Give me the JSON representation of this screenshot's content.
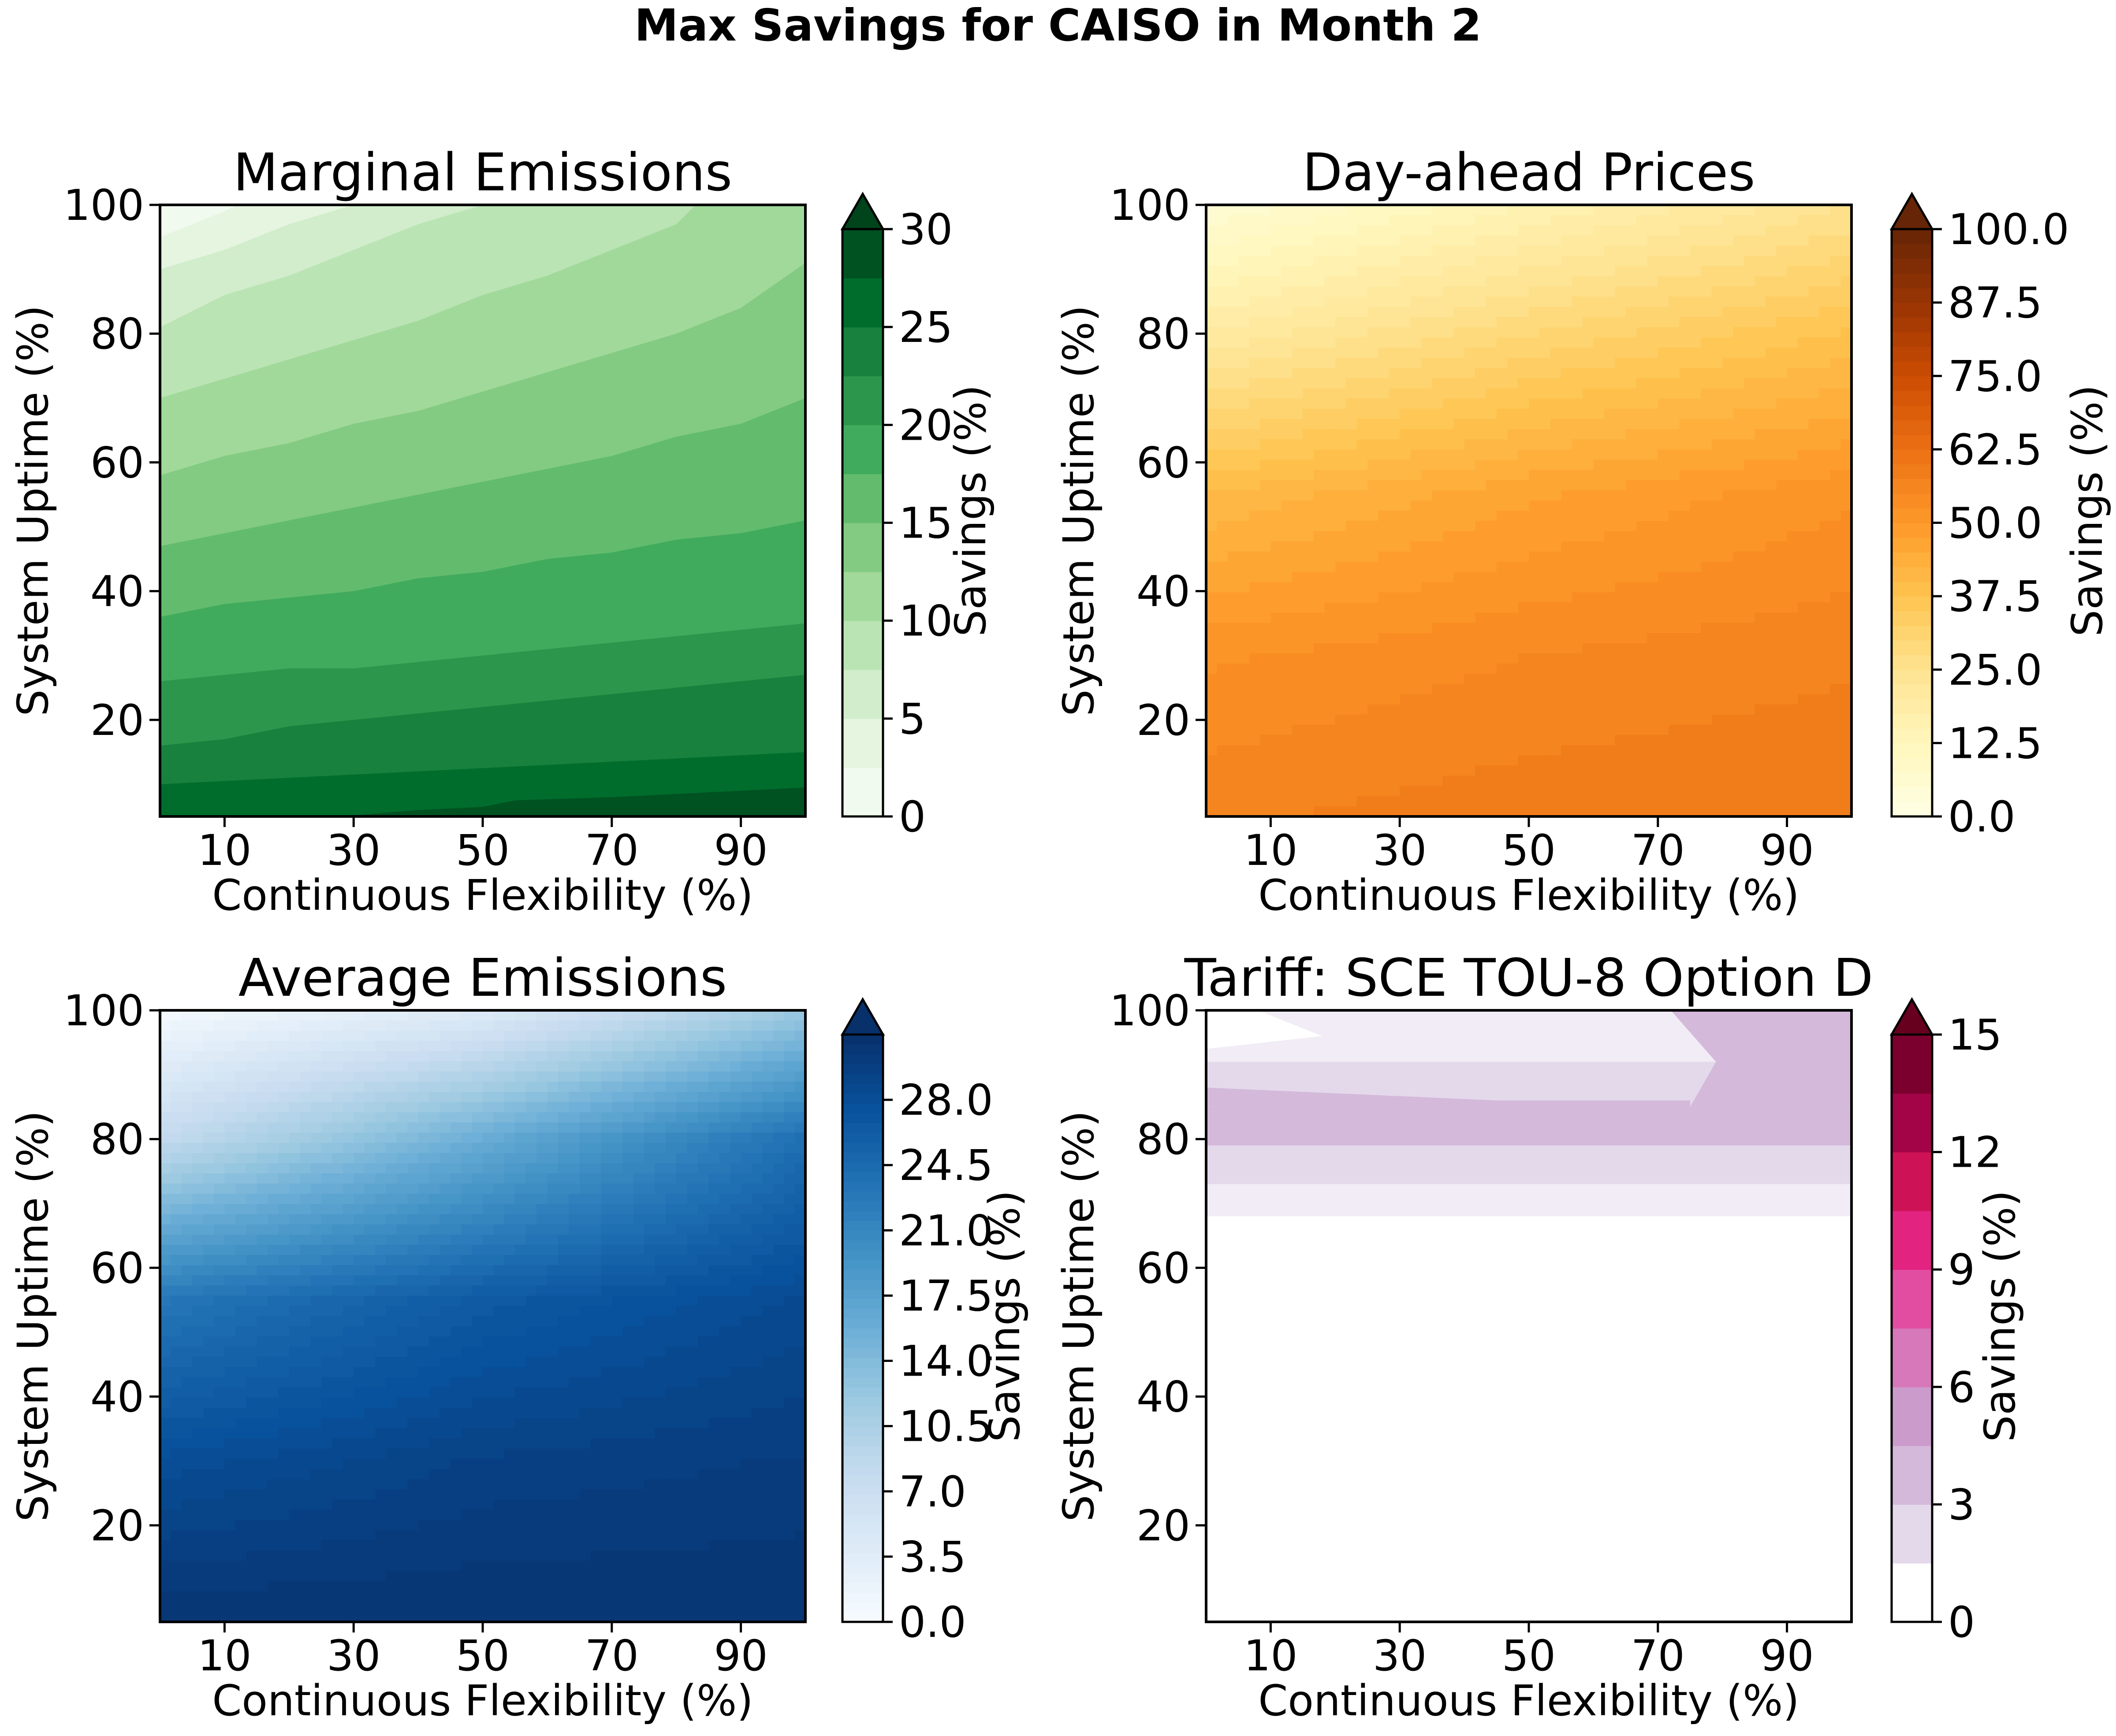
{
  "suptitle": "Max Savings for CAISO in Month 2",
  "chart_data": [
    {
      "type": "heatmap",
      "title": "Marginal Emissions",
      "xlabel": "Continuous Flexibility (%)",
      "ylabel": "System Uptime (%)",
      "xticks": [
        "10",
        "30",
        "50",
        "70",
        "90"
      ],
      "yticks": [
        "20",
        "40",
        "60",
        "80",
        "100"
      ],
      "xlim": [
        0,
        100
      ],
      "ylim": [
        5,
        100
      ],
      "colormap": "Greens",
      "colorbar": {
        "label": "Savings (%)",
        "ticks": [
          "0",
          "5",
          "10",
          "15",
          "20",
          "25",
          "30"
        ],
        "range": [
          0,
          30
        ],
        "levels": 12,
        "extend": "max"
      },
      "boundaries": [
        {
          "level": 2.5,
          "y_at_x": [
            [
              0,
              95
            ],
            [
              10,
              99
            ],
            [
              20,
              104
            ]
          ]
        },
        {
          "level": 5,
          "y_at_x": [
            [
              0,
              90
            ],
            [
              10,
              93
            ],
            [
              20,
              97
            ],
            [
              30,
              100
            ]
          ]
        },
        {
          "level": 7.5,
          "y_at_x": [
            [
              0,
              81
            ],
            [
              10,
              86
            ],
            [
              20,
              89
            ],
            [
              30,
              93
            ],
            [
              40,
              97
            ],
            [
              50,
              100
            ]
          ]
        },
        {
          "level": 10,
          "y_at_x": [
            [
              0,
              70
            ],
            [
              10,
              73
            ],
            [
              20,
              76
            ],
            [
              30,
              79
            ],
            [
              40,
              82
            ],
            [
              50,
              86
            ],
            [
              60,
              89
            ],
            [
              70,
              93
            ],
            [
              80,
              97
            ],
            [
              83,
              100
            ]
          ]
        },
        {
          "level": 12.5,
          "y_at_x": [
            [
              0,
              58
            ],
            [
              10,
              61
            ],
            [
              20,
              63
            ],
            [
              30,
              66
            ],
            [
              40,
              68
            ],
            [
              50,
              71
            ],
            [
              60,
              74
            ],
            [
              70,
              77
            ],
            [
              80,
              80
            ],
            [
              90,
              84
            ],
            [
              100,
              91
            ]
          ]
        },
        {
          "level": 15,
          "y_at_x": [
            [
              0,
              47
            ],
            [
              10,
              49
            ],
            [
              20,
              51
            ],
            [
              30,
              53
            ],
            [
              40,
              55
            ],
            [
              50,
              57
            ],
            [
              60,
              59
            ],
            [
              70,
              61
            ],
            [
              80,
              64
            ],
            [
              90,
              66
            ],
            [
              100,
              70
            ]
          ]
        },
        {
          "level": 17.5,
          "y_at_x": [
            [
              0,
              36
            ],
            [
              10,
              38
            ],
            [
              20,
              39
            ],
            [
              30,
              40
            ],
            [
              40,
              42
            ],
            [
              50,
              43
            ],
            [
              60,
              45
            ],
            [
              70,
              46
            ],
            [
              80,
              48
            ],
            [
              90,
              49
            ],
            [
              100,
              51
            ]
          ]
        },
        {
          "level": 20,
          "y_at_x": [
            [
              0,
              26
            ],
            [
              10,
              27
            ],
            [
              20,
              28
            ],
            [
              30,
              28
            ],
            [
              40,
              29
            ],
            [
              50,
              30
            ],
            [
              60,
              31
            ],
            [
              70,
              32
            ],
            [
              80,
              33
            ],
            [
              90,
              34
            ],
            [
              100,
              35
            ]
          ]
        },
        {
          "level": 22.5,
          "y_at_x": [
            [
              0,
              16
            ],
            [
              10,
              17
            ],
            [
              20,
              19
            ],
            [
              30,
              20
            ],
            [
              40,
              21
            ],
            [
              50,
              22
            ],
            [
              60,
              23
            ],
            [
              70,
              24
            ],
            [
              80,
              25
            ],
            [
              90,
              26
            ],
            [
              100,
              27
            ]
          ]
        },
        {
          "level": 25,
          "y_at_x": [
            [
              0,
              10
            ],
            [
              10,
              10.5
            ],
            [
              20,
              11
            ],
            [
              30,
              11.5
            ],
            [
              40,
              12
            ],
            [
              50,
              12.5
            ],
            [
              60,
              13
            ],
            [
              70,
              13.5
            ],
            [
              80,
              14
            ],
            [
              90,
              14.5
            ],
            [
              100,
              15
            ]
          ]
        },
        {
          "level": 27.5,
          "y_at_x": [
            [
              28,
              5
            ],
            [
              40,
              6
            ],
            [
              50,
              6.5
            ],
            [
              55,
              7.5
            ],
            [
              70,
              8
            ],
            [
              80,
              8.5
            ],
            [
              90,
              9
            ],
            [
              100,
              9.5
            ]
          ]
        }
      ]
    },
    {
      "type": "heatmap",
      "title": "Day-ahead Prices",
      "xlabel": "Continuous Flexibility (%)",
      "ylabel": "System Uptime (%)",
      "xticks": [
        "10",
        "30",
        "50",
        "70",
        "90"
      ],
      "yticks": [
        "20",
        "40",
        "60",
        "80",
        "100"
      ],
      "xlim": [
        0,
        100
      ],
      "ylim": [
        5,
        100
      ],
      "colormap": "YlOrBr",
      "colorbar": {
        "label": "Savings (%)",
        "ticks": [
          "0.0",
          "12.5",
          "25.0",
          "37.5",
          "50.0",
          "62.5",
          "75.0",
          "87.5",
          "100.0"
        ],
        "range": [
          0,
          100
        ],
        "levels": 40,
        "extend": "max"
      },
      "grid_values": {
        "x": [
          0,
          50,
          100
        ],
        "y": [
          5,
          30,
          55,
          80,
          100
        ],
        "z": [
          [
            57,
            59,
            60
          ],
          [
            52,
            55,
            57
          ],
          [
            40,
            47,
            52
          ],
          [
            20,
            30,
            38
          ],
          [
            5,
            15,
            25
          ]
        ]
      }
    },
    {
      "type": "heatmap",
      "title": "Average Emissions",
      "xlabel": "Continuous Flexibility (%)",
      "ylabel": "System Uptime (%)",
      "xticks": [
        "10",
        "30",
        "50",
        "70",
        "90"
      ],
      "yticks": [
        "20",
        "40",
        "60",
        "80",
        "100"
      ],
      "xlim": [
        0,
        100
      ],
      "ylim": [
        5,
        100
      ],
      "colormap": "Blues",
      "colorbar": {
        "label": "Savings (%)",
        "ticks": [
          "0.0",
          "3.5",
          "7.0",
          "10.5",
          "14.0",
          "17.5",
          "21.0",
          "24.5",
          "28.0"
        ],
        "range": [
          0,
          31.5
        ],
        "levels": 60,
        "extend": "max"
      },
      "grid_values": {
        "x": [
          0,
          50,
          100
        ],
        "y": [
          5,
          30,
          55,
          80,
          100
        ],
        "z": [
          [
            31,
            31,
            31
          ],
          [
            28,
            29.5,
            30
          ],
          [
            23,
            26.5,
            28.5
          ],
          [
            8,
            16,
            24
          ],
          [
            0.5,
            4,
            12
          ]
        ]
      }
    },
    {
      "type": "heatmap",
      "title": "Tariff: SCE TOU-8 Option D",
      "xlabel": "Continuous Flexibility (%)",
      "ylabel": "System Uptime (%)",
      "xticks": [
        "10",
        "30",
        "50",
        "70",
        "90"
      ],
      "yticks": [
        "20",
        "40",
        "60",
        "80",
        "100"
      ],
      "xlim": [
        0,
        100
      ],
      "ylim": [
        5,
        100
      ],
      "colormap": "PuRd",
      "colorbar": {
        "label": "Savings (%)",
        "ticks": [
          "0",
          "3",
          "6",
          "9",
          "12",
          "15"
        ],
        "range": [
          0,
          15
        ],
        "levels": 10,
        "extend": "max"
      },
      "regions": [
        {
          "value": 0,
          "description": "below uptime 68"
        },
        {
          "value": 1.5,
          "y_range": [
            68,
            73
          ]
        },
        {
          "value": 3,
          "y_range": [
            73,
            79
          ]
        },
        {
          "value": 4.5,
          "y_range": [
            79,
            85
          ]
        },
        {
          "value": 3,
          "y_range": [
            85,
            92
          ]
        },
        {
          "value": 1.5,
          "y_range": [
            92,
            100
          ]
        },
        {
          "value": 0,
          "description": "upper-left pocket near uptime 95"
        }
      ]
    }
  ]
}
